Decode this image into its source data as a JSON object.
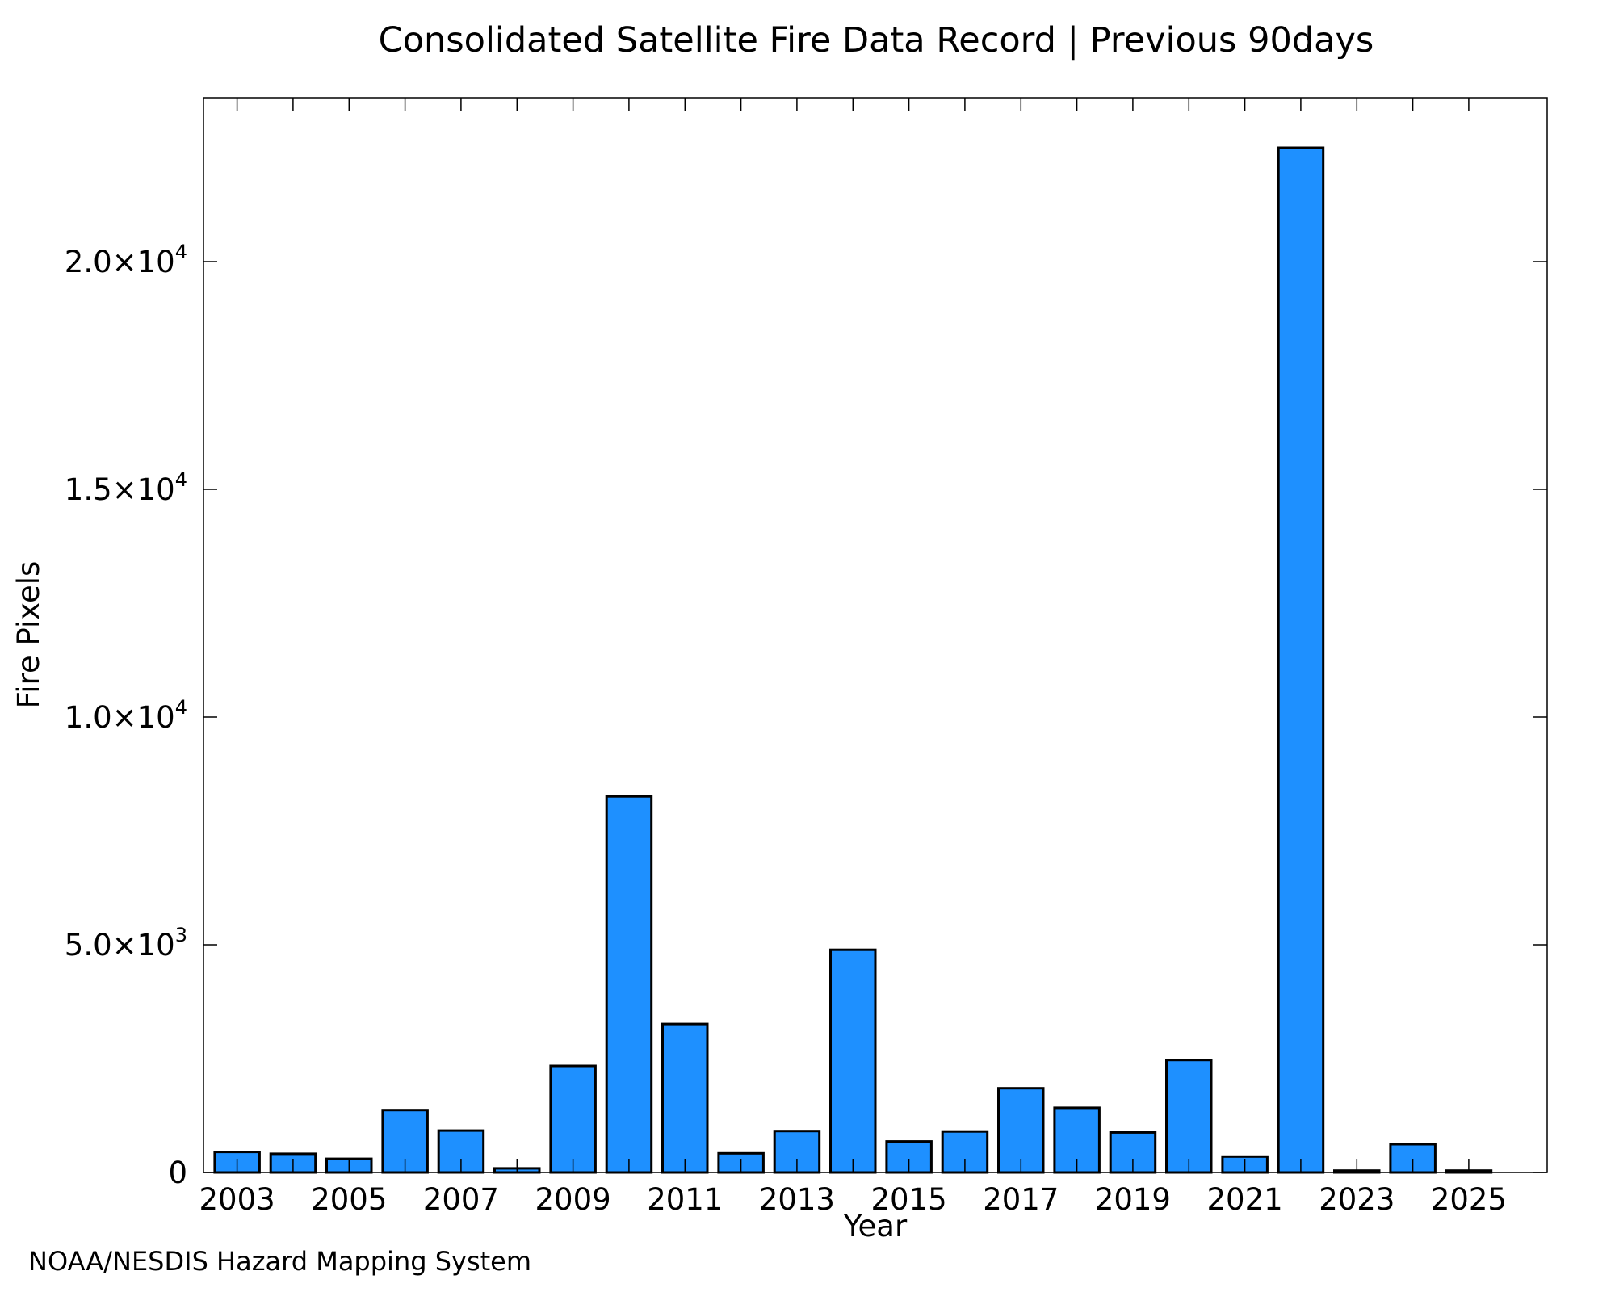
{
  "chart_data": {
    "type": "bar",
    "title": "Consolidated Satellite Fire Data Record | Previous 90days",
    "xlabel": "Year",
    "ylabel": "Fire Pixels",
    "categories": [
      "2003",
      "2004",
      "2005",
      "2006",
      "2007",
      "2008",
      "2009",
      "2010",
      "2011",
      "2012",
      "2013",
      "2014",
      "2015",
      "2016",
      "2017",
      "2018",
      "2019",
      "2020",
      "2021",
      "2022",
      "2023",
      "2024",
      "2025"
    ],
    "values": [
      450,
      410,
      300,
      1370,
      920,
      90,
      2340,
      8260,
      3260,
      420,
      910,
      4890,
      680,
      900,
      1850,
      1420,
      880,
      2470,
      350,
      22500,
      40,
      620,
      40
    ],
    "xlim": [
      2002.4,
      2026.4
    ],
    "ylim": [
      0,
      23600
    ],
    "x_tick_labels": [
      {
        "year": 2003,
        "text": "2003"
      },
      {
        "year": 2005,
        "text": "2005"
      },
      {
        "year": 2007,
        "text": "2007"
      },
      {
        "year": 2009,
        "text": "2009"
      },
      {
        "year": 2011,
        "text": "2011"
      },
      {
        "year": 2013,
        "text": "2013"
      },
      {
        "year": 2015,
        "text": "2015"
      },
      {
        "year": 2017,
        "text": "2017"
      },
      {
        "year": 2019,
        "text": "2019"
      },
      {
        "year": 2021,
        "text": "2021"
      },
      {
        "year": 2023,
        "text": "2023"
      },
      {
        "year": 2025,
        "text": "2025"
      }
    ],
    "y_ticks": [
      {
        "value": 0,
        "mantissa": "0",
        "exponent": ""
      },
      {
        "value": 5000,
        "mantissa": "5.0×10",
        "exponent": "3"
      },
      {
        "value": 10000,
        "mantissa": "1.0×10",
        "exponent": "4"
      },
      {
        "value": 15000,
        "mantissa": "1.5×10",
        "exponent": "4"
      },
      {
        "value": 20000,
        "mantissa": "2.0×10",
        "exponent": "4"
      }
    ],
    "grid": false,
    "bar_color": "#1e90ff",
    "bar_edge_color": "#000000"
  },
  "credit": {
    "text": "NOAA/NESDIS Hazard Mapping System",
    "color": "#808080"
  }
}
